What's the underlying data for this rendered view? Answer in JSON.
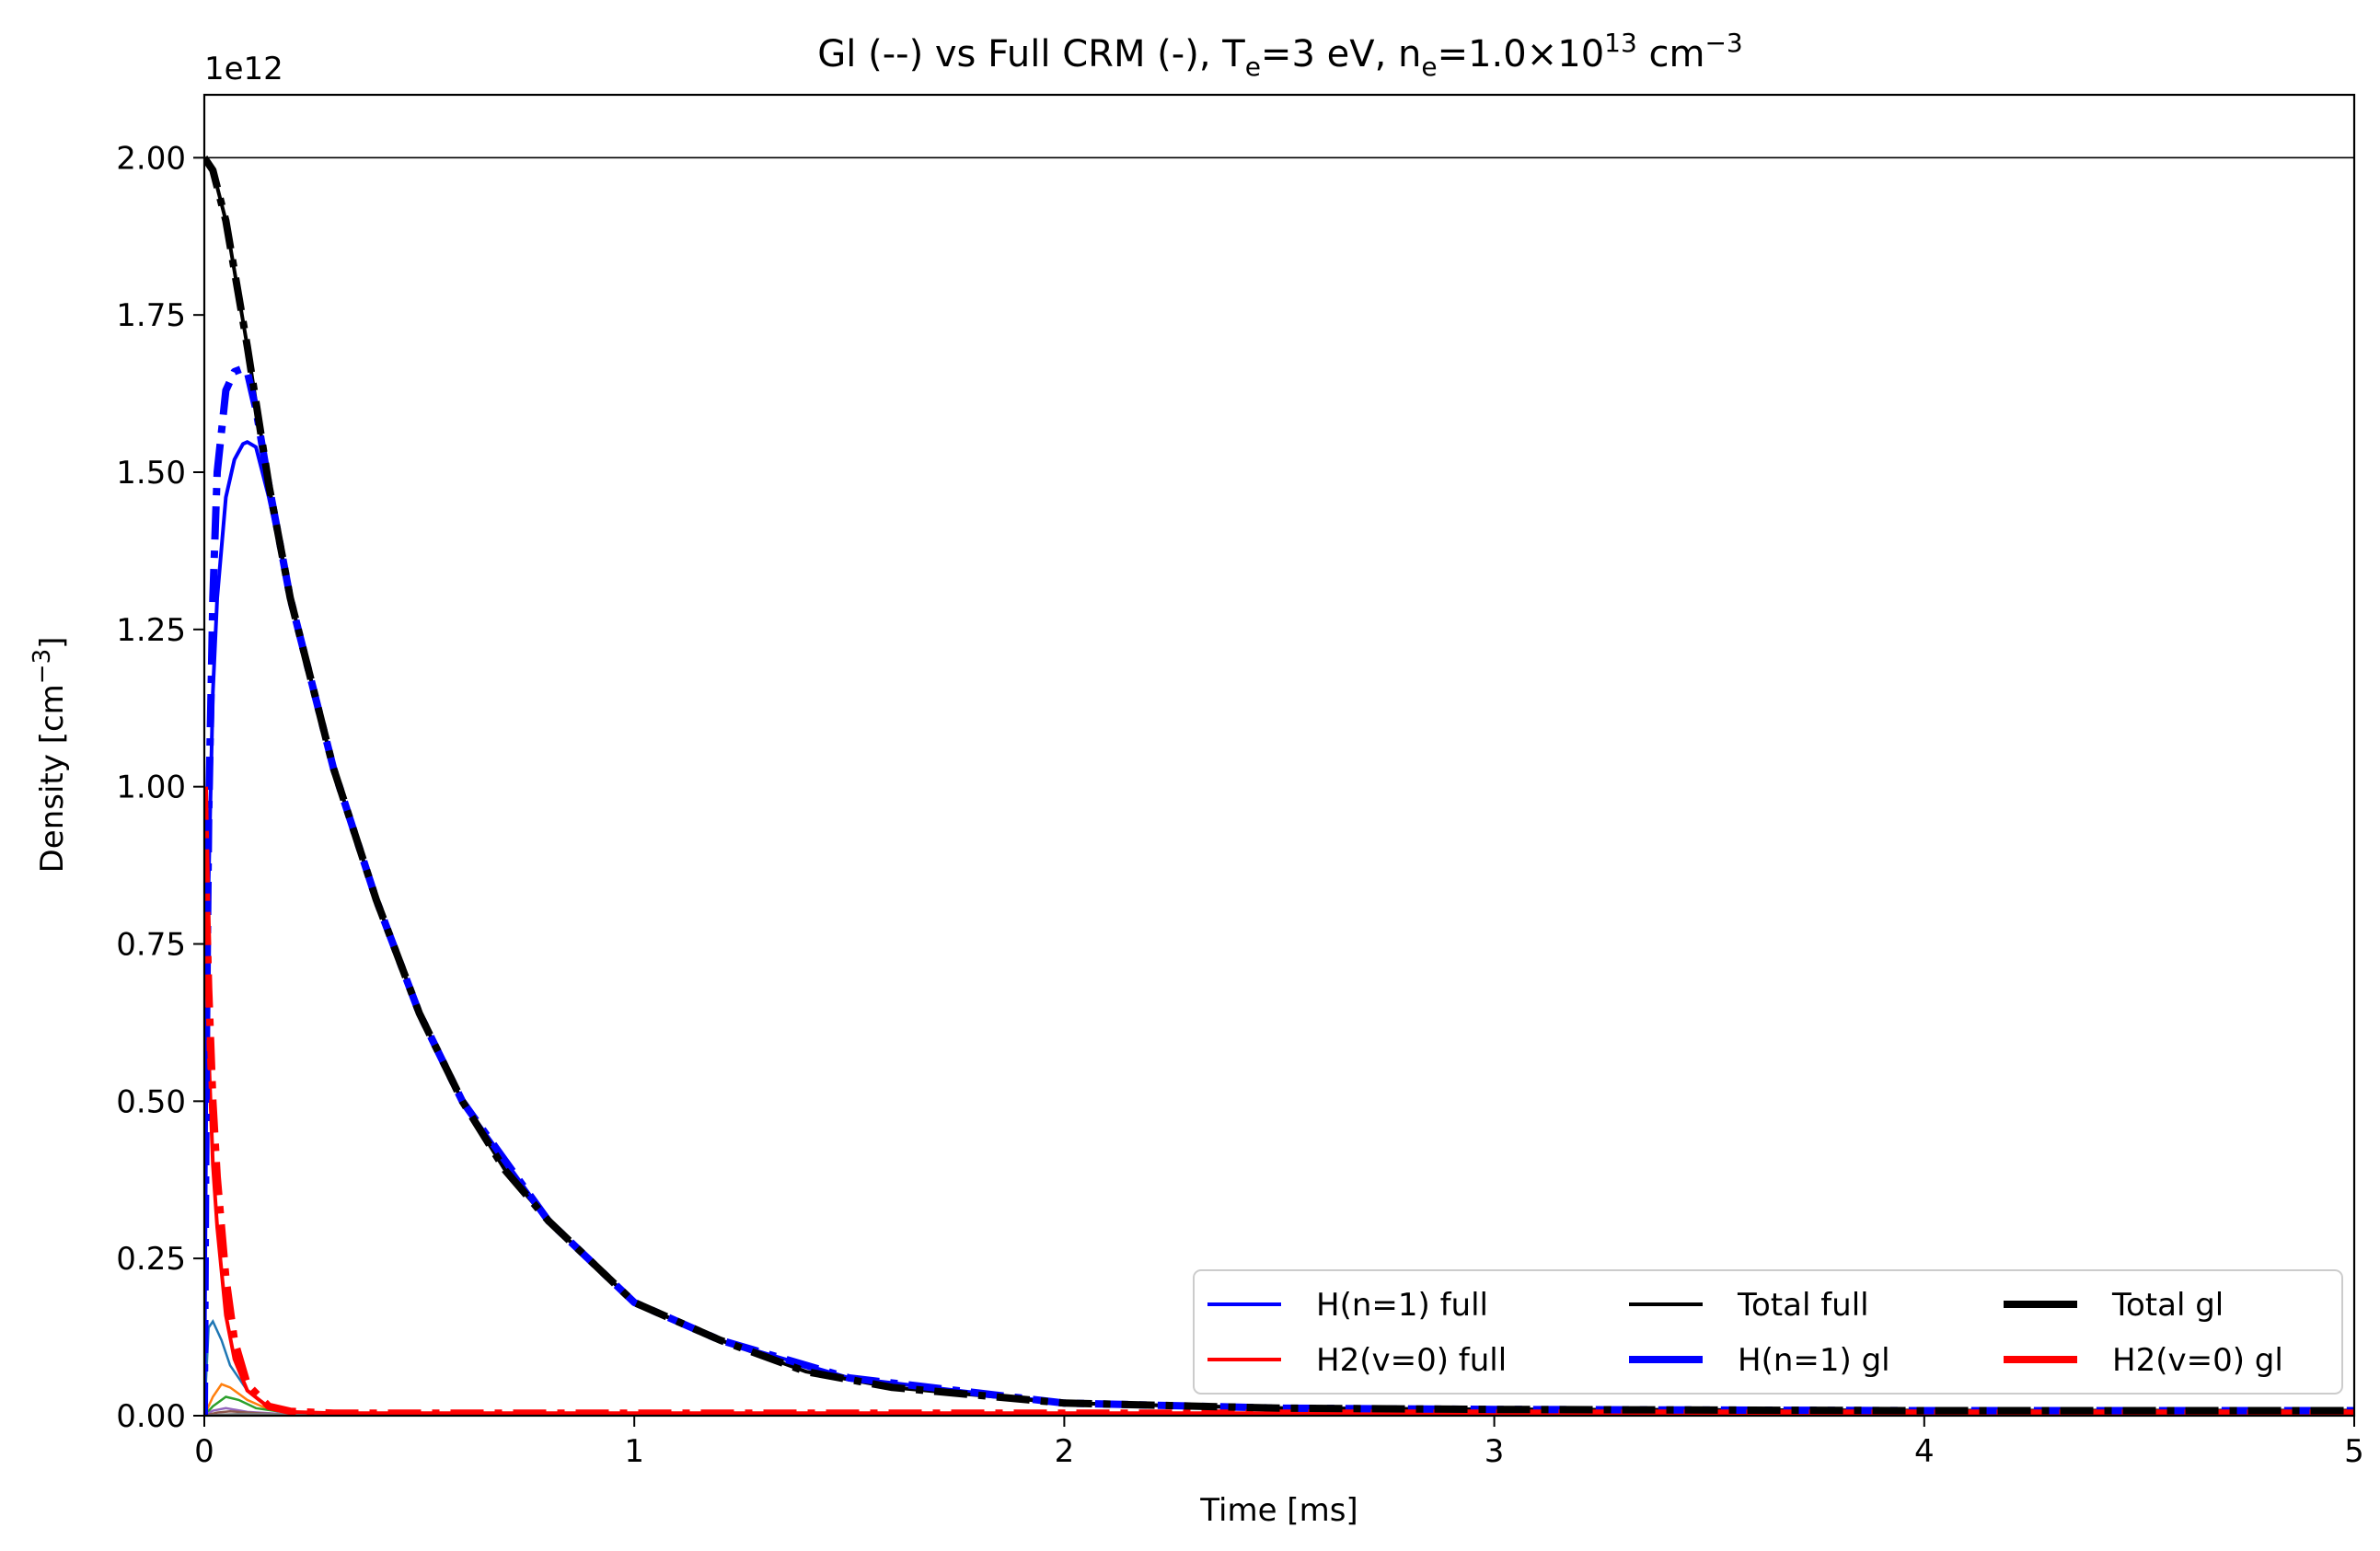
{
  "chart_data": {
    "type": "line",
    "title": {
      "prefix": "Gl (--) vs Full CRM (-),  T",
      "te_sub": "e",
      "te_rest": "=3 eV, n",
      "ne_sub": "e",
      "ne_rest": "=1.0×10",
      "ne_exp": "13",
      "unit": " cm",
      "unit_exp": "−3"
    },
    "xlabel": "Time [ms]",
    "ylabel": "Density [cm",
    "ylabel_exp": "−3",
    "ylabel_close": "]",
    "y_offset_label": "1e12",
    "xlim": [
      0,
      5
    ],
    "ylim": [
      0,
      2.1
    ],
    "y_scale": 1000000000000.0,
    "x_ticks": [
      0,
      1,
      2,
      3,
      4,
      5
    ],
    "x_tick_labels": [
      "0",
      "1",
      "2",
      "3",
      "4",
      "5"
    ],
    "y_ticks": [
      0,
      0.25,
      0.5,
      0.75,
      1.0,
      1.25,
      1.5,
      1.75,
      2.0
    ],
    "y_tick_labels": [
      "0.00",
      "0.25",
      "0.50",
      "0.75",
      "1.00",
      "1.25",
      "1.50",
      "1.75",
      "2.00"
    ],
    "reference_line": {
      "y": 2.0,
      "color": "#000000"
    },
    "grid": false,
    "legend_position": "lower-right",
    "legend_columns": 3,
    "series": [
      {
        "name": "H(n=1) full",
        "color": "#0000ff",
        "style": "solid",
        "width": "thin",
        "x": [
          0,
          0.005,
          0.01,
          0.02,
          0.03,
          0.05,
          0.07,
          0.09,
          0.1,
          0.12,
          0.15,
          0.2,
          0.3,
          0.4,
          0.5,
          0.6,
          0.8,
          1.0,
          1.2,
          1.5,
          2.0,
          2.5,
          3.0,
          4.0,
          5.0
        ],
        "y": [
          0,
          0.55,
          0.85,
          1.15,
          1.3,
          1.46,
          1.52,
          1.545,
          1.548,
          1.54,
          1.46,
          1.3,
          1.03,
          0.82,
          0.64,
          0.5,
          0.31,
          0.18,
          0.12,
          0.06,
          0.02,
          0.012,
          0.01,
          0.008,
          0.008
        ]
      },
      {
        "name": "H2(v=0) full",
        "color": "#ff0000",
        "style": "solid",
        "width": "thin",
        "x": [
          0,
          0.005,
          0.01,
          0.02,
          0.03,
          0.05,
          0.07,
          0.1,
          0.15,
          0.2,
          0.3,
          0.5,
          1.0,
          2.0,
          3.0,
          4.0,
          5.0
        ],
        "y": [
          1.0,
          0.75,
          0.58,
          0.4,
          0.3,
          0.16,
          0.09,
          0.04,
          0.013,
          0.006,
          0.004,
          0.004,
          0.004,
          0.004,
          0.004,
          0.004,
          0.004
        ]
      },
      {
        "name": "Total full",
        "color": "#000000",
        "style": "solid",
        "width": "thin",
        "x": [
          0,
          0.02,
          0.05,
          0.08,
          0.1,
          0.15,
          0.2,
          0.3,
          0.4,
          0.5,
          0.6,
          0.7,
          0.8,
          1.0,
          1.2,
          1.4,
          1.6,
          2.0,
          2.5,
          3.0,
          4.0,
          5.0
        ],
        "y": [
          2.0,
          1.98,
          1.9,
          1.78,
          1.7,
          1.48,
          1.3,
          1.03,
          0.82,
          0.64,
          0.5,
          0.39,
          0.31,
          0.18,
          0.12,
          0.07,
          0.045,
          0.02,
          0.012,
          0.01,
          0.008,
          0.008
        ]
      },
      {
        "name": "H(n=1) gl",
        "color": "#0000ff",
        "style": "dashdot",
        "width": "thick",
        "x": [
          0,
          0.005,
          0.01,
          0.02,
          0.03,
          0.05,
          0.07,
          0.09,
          0.1,
          0.12,
          0.15,
          0.2,
          0.3,
          0.4,
          0.5,
          0.6,
          0.8,
          1.0,
          1.2,
          1.5,
          2.0,
          2.5,
          3.0,
          4.0,
          5.0
        ],
        "y": [
          0,
          0.6,
          0.95,
          1.3,
          1.5,
          1.63,
          1.66,
          1.665,
          1.66,
          1.6,
          1.48,
          1.3,
          1.03,
          0.82,
          0.64,
          0.5,
          0.31,
          0.18,
          0.12,
          0.06,
          0.02,
          0.012,
          0.01,
          0.008,
          0.008
        ]
      },
      {
        "name": "H2(v=0) gl",
        "color": "#ff0000",
        "style": "dashdot",
        "width": "thick",
        "x": [
          0,
          0.005,
          0.01,
          0.02,
          0.03,
          0.05,
          0.07,
          0.1,
          0.15,
          0.2,
          0.3,
          0.5,
          1.0,
          2.0,
          3.0,
          4.0,
          5.0
        ],
        "y": [
          1.0,
          0.82,
          0.68,
          0.5,
          0.38,
          0.22,
          0.12,
          0.05,
          0.015,
          0.007,
          0.004,
          0.004,
          0.004,
          0.004,
          0.004,
          0.004,
          0.004
        ]
      },
      {
        "name": "Total gl",
        "color": "#000000",
        "style": "dashdot",
        "width": "thick",
        "x": [
          0,
          0.02,
          0.05,
          0.08,
          0.1,
          0.15,
          0.2,
          0.3,
          0.4,
          0.5,
          0.6,
          0.7,
          0.8,
          1.0,
          1.2,
          1.4,
          1.6,
          2.0,
          2.5,
          3.0,
          4.0,
          5.0
        ],
        "y": [
          2.0,
          1.98,
          1.9,
          1.78,
          1.7,
          1.48,
          1.3,
          1.03,
          0.82,
          0.64,
          0.5,
          0.39,
          0.31,
          0.18,
          0.12,
          0.07,
          0.045,
          0.02,
          0.012,
          0.01,
          0.008,
          0.008
        ]
      }
    ],
    "minor_series": [
      {
        "color": "#1f77b4",
        "x": [
          0,
          0.01,
          0.02,
          0.04,
          0.06,
          0.1,
          0.15,
          0.2,
          0.3,
          5.0
        ],
        "y": [
          0,
          0.14,
          0.15,
          0.12,
          0.08,
          0.04,
          0.015,
          0.006,
          0.002,
          0.002
        ]
      },
      {
        "color": "#ff7f0e",
        "x": [
          0,
          0.02,
          0.04,
          0.06,
          0.1,
          0.15,
          0.2,
          0.3,
          5.0
        ],
        "y": [
          0,
          0.03,
          0.05,
          0.045,
          0.025,
          0.01,
          0.004,
          0.001,
          0.001
        ]
      },
      {
        "color": "#2ca02c",
        "x": [
          0,
          0.02,
          0.05,
          0.08,
          0.12,
          0.2,
          0.3,
          5.0
        ],
        "y": [
          0,
          0.015,
          0.03,
          0.025,
          0.012,
          0.004,
          0.001,
          0.001
        ]
      },
      {
        "color": "#9467bd",
        "x": [
          0,
          0.02,
          0.05,
          0.1,
          0.2,
          5.0
        ],
        "y": [
          0,
          0.008,
          0.012,
          0.006,
          0.002,
          0.001
        ]
      },
      {
        "color": "#8c564b",
        "x": [
          0,
          0.03,
          0.06,
          0.12,
          0.2,
          5.0
        ],
        "y": [
          0,
          0.005,
          0.007,
          0.004,
          0.001,
          0.001
        ]
      },
      {
        "color": "#7f7f7f",
        "x": [
          0,
          0.05,
          0.1,
          0.2,
          0.4,
          5.0
        ],
        "y": [
          0,
          0.002,
          0.003,
          0.002,
          0.001,
          0.001
        ]
      }
    ],
    "legend_order": [
      0,
      1,
      2,
      3,
      5,
      4
    ]
  }
}
